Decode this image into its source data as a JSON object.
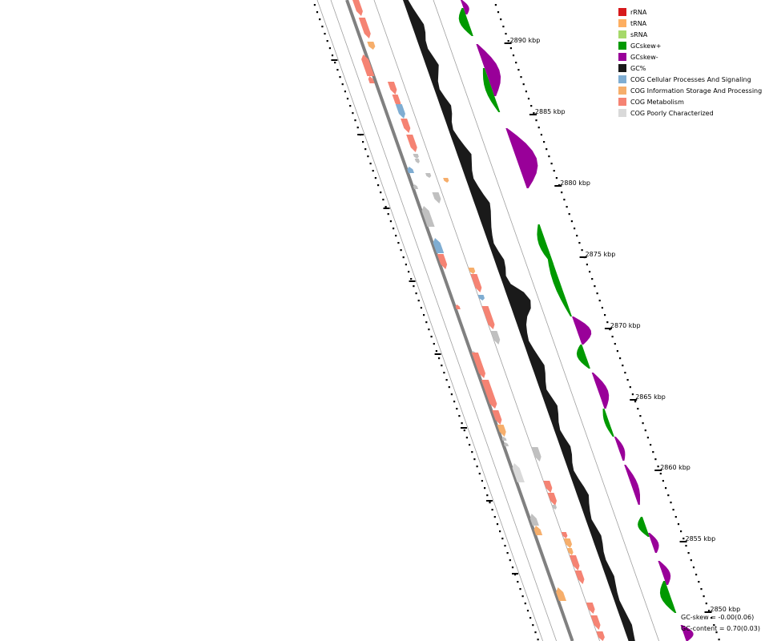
{
  "legend": [
    {
      "label": "rRNA",
      "color": "#d7191c"
    },
    {
      "label": "tRNA",
      "color": "#fdae61"
    },
    {
      "label": "sRNA",
      "color": "#a6d96a"
    },
    {
      "label": "GCskew+",
      "color": "#009900"
    },
    {
      "label": "GCskew-",
      "color": "#990099"
    },
    {
      "label": "GC%",
      "color": "#1a1a1a"
    },
    {
      "label": "COG Cellular Processes And Signaling",
      "color": "#7fadd2"
    },
    {
      "label": "COG Information Storage And Processing",
      "color": "#f6ae6b"
    },
    {
      "label": "COG Metabolism",
      "color": "#f58373"
    },
    {
      "label": "COG Poorly Characterized",
      "color": "#d9d9d9"
    }
  ],
  "colors": {
    "gene_gray": "#c0c0c0",
    "backbone": "#808080",
    "guide_line": "#a0a0a0"
  },
  "scale": {
    "unit": "kbp",
    "labels": [
      "2890 kbp",
      "2885 kbp",
      "2880 kbp",
      "2875 kbp",
      "2870 kbp",
      "2865 kbp",
      "2860 kbp",
      "2855 kbp",
      "2850 kbp"
    ],
    "kbp": [
      2890,
      2885,
      2880,
      2875,
      2870,
      2865,
      2860,
      2855,
      2850
    ]
  },
  "stats": {
    "gc_skew": "GC-skew = -0.00(0.06)",
    "gc_content": "GC-content = 0.70(0.03)"
  }
}
